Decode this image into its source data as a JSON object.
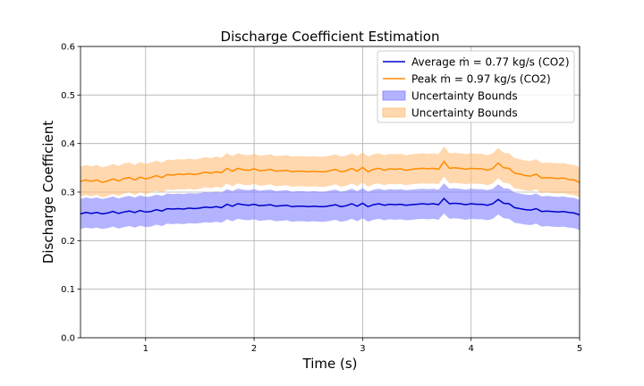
{
  "chart_data": {
    "type": "line",
    "title": "Discharge Coefficient Estimation",
    "xlabel": "Time (s)",
    "ylabel": "Discharge Coefficient",
    "xlim": [
      0.4,
      5.0
    ],
    "ylim": [
      0.0,
      0.6
    ],
    "xticks": [
      1,
      2,
      3,
      4,
      5
    ],
    "yticks": [
      0.0,
      0.1,
      0.2,
      0.3,
      0.4,
      0.5,
      0.6
    ],
    "grid": true,
    "legend_position": "top-right",
    "band_halfwidth": 0.031,
    "series": [
      {
        "name": "Average ṁ = 0.77 kg/s (CO2)",
        "color": "#0000cc",
        "band_color": "#8080ff",
        "band_label": "Uncertainty Bounds",
        "x": [
          0.4,
          0.45,
          0.5,
          0.55,
          0.6,
          0.65,
          0.7,
          0.75,
          0.8,
          0.85,
          0.9,
          0.95,
          1.0,
          1.05,
          1.1,
          1.15,
          1.2,
          1.25,
          1.3,
          1.35,
          1.4,
          1.45,
          1.5,
          1.55,
          1.6,
          1.65,
          1.7,
          1.75,
          1.8,
          1.85,
          1.9,
          1.95,
          2.0,
          2.05,
          2.1,
          2.15,
          2.2,
          2.25,
          2.3,
          2.35,
          2.4,
          2.45,
          2.5,
          2.55,
          2.6,
          2.65,
          2.7,
          2.75,
          2.8,
          2.85,
          2.9,
          2.95,
          3.0,
          3.05,
          3.1,
          3.15,
          3.2,
          3.25,
          3.3,
          3.35,
          3.4,
          3.45,
          3.5,
          3.55,
          3.6,
          3.65,
          3.7,
          3.75,
          3.8,
          3.85,
          3.9,
          3.95,
          4.0,
          4.05,
          4.1,
          4.15,
          4.2,
          4.25,
          4.3,
          4.35,
          4.4,
          4.45,
          4.5,
          4.55,
          4.6,
          4.65,
          4.7,
          4.75,
          4.8,
          4.85,
          4.9,
          4.95,
          5.0
        ],
        "y": [
          0.255,
          0.258,
          0.256,
          0.258,
          0.255,
          0.257,
          0.26,
          0.256,
          0.259,
          0.261,
          0.258,
          0.262,
          0.259,
          0.26,
          0.264,
          0.261,
          0.266,
          0.265,
          0.266,
          0.265,
          0.267,
          0.266,
          0.267,
          0.269,
          0.268,
          0.27,
          0.268,
          0.275,
          0.271,
          0.276,
          0.274,
          0.273,
          0.275,
          0.272,
          0.273,
          0.274,
          0.271,
          0.272,
          0.273,
          0.27,
          0.271,
          0.271,
          0.27,
          0.271,
          0.27,
          0.27,
          0.272,
          0.274,
          0.27,
          0.272,
          0.276,
          0.271,
          0.277,
          0.27,
          0.274,
          0.276,
          0.273,
          0.275,
          0.274,
          0.275,
          0.273,
          0.274,
          0.275,
          0.276,
          0.275,
          0.276,
          0.274,
          0.287,
          0.276,
          0.277,
          0.276,
          0.274,
          0.276,
          0.275,
          0.275,
          0.273,
          0.276,
          0.285,
          0.277,
          0.276,
          0.268,
          0.266,
          0.264,
          0.263,
          0.266,
          0.26,
          0.261,
          0.26,
          0.259,
          0.26,
          0.258,
          0.257,
          0.253
        ]
      },
      {
        "name": "Peak ṁ = 0.97 kg/s (CO2)",
        "color": "#ff8c00",
        "band_color": "#ffbe7a",
        "band_label": "Uncertainty Bounds",
        "x": [
          0.4,
          0.45,
          0.5,
          0.55,
          0.6,
          0.65,
          0.7,
          0.75,
          0.8,
          0.85,
          0.9,
          0.95,
          1.0,
          1.05,
          1.1,
          1.15,
          1.2,
          1.25,
          1.3,
          1.35,
          1.4,
          1.45,
          1.5,
          1.55,
          1.6,
          1.65,
          1.7,
          1.75,
          1.8,
          1.85,
          1.9,
          1.95,
          2.0,
          2.05,
          2.1,
          2.15,
          2.2,
          2.25,
          2.3,
          2.35,
          2.4,
          2.45,
          2.5,
          2.55,
          2.6,
          2.65,
          2.7,
          2.75,
          2.8,
          2.85,
          2.9,
          2.95,
          3.0,
          3.05,
          3.1,
          3.15,
          3.2,
          3.25,
          3.3,
          3.35,
          3.4,
          3.45,
          3.5,
          3.55,
          3.6,
          3.65,
          3.7,
          3.75,
          3.8,
          3.85,
          3.9,
          3.95,
          4.0,
          4.05,
          4.1,
          4.15,
          4.2,
          4.25,
          4.3,
          4.35,
          4.4,
          4.45,
          4.5,
          4.55,
          4.6,
          4.65,
          4.7,
          4.75,
          4.8,
          4.85,
          4.9,
          4.95,
          5.0
        ],
        "y": [
          0.322,
          0.325,
          0.322,
          0.325,
          0.32,
          0.323,
          0.327,
          0.323,
          0.328,
          0.33,
          0.325,
          0.331,
          0.327,
          0.33,
          0.334,
          0.33,
          0.336,
          0.335,
          0.337,
          0.336,
          0.338,
          0.336,
          0.338,
          0.341,
          0.339,
          0.342,
          0.34,
          0.349,
          0.343,
          0.349,
          0.346,
          0.345,
          0.348,
          0.344,
          0.345,
          0.347,
          0.343,
          0.344,
          0.345,
          0.342,
          0.343,
          0.343,
          0.342,
          0.343,
          0.342,
          0.342,
          0.344,
          0.347,
          0.342,
          0.344,
          0.349,
          0.343,
          0.351,
          0.342,
          0.347,
          0.349,
          0.345,
          0.348,
          0.347,
          0.348,
          0.345,
          0.347,
          0.348,
          0.349,
          0.348,
          0.349,
          0.347,
          0.363,
          0.349,
          0.35,
          0.349,
          0.347,
          0.349,
          0.348,
          0.348,
          0.345,
          0.349,
          0.36,
          0.35,
          0.349,
          0.339,
          0.337,
          0.334,
          0.333,
          0.337,
          0.329,
          0.33,
          0.329,
          0.328,
          0.329,
          0.326,
          0.325,
          0.32
        ]
      }
    ]
  }
}
